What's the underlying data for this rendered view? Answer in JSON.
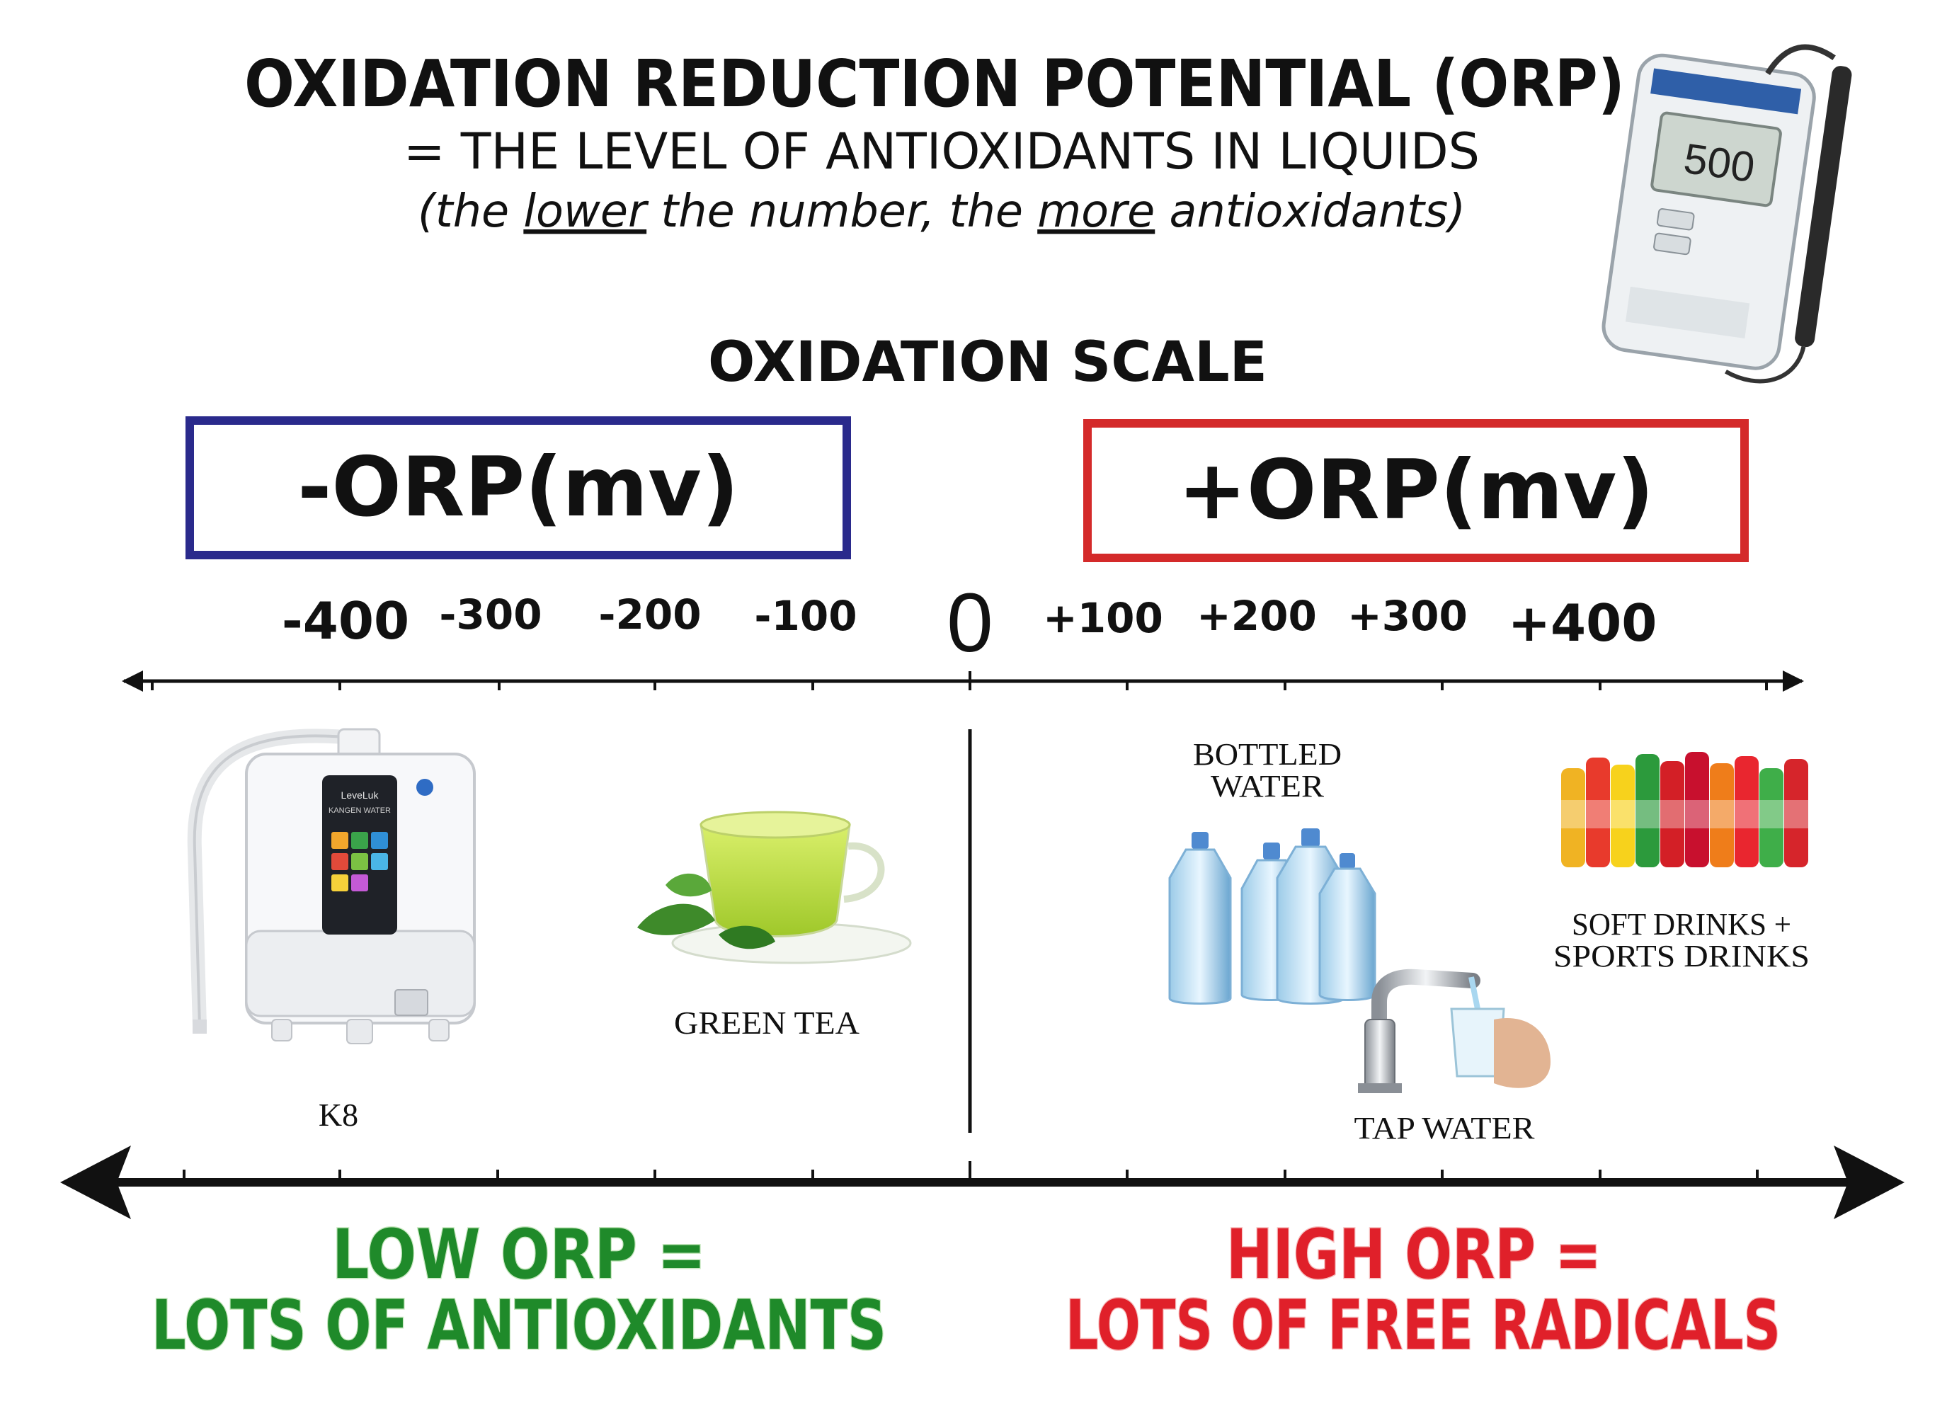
{
  "header": {
    "title": "OXIDATION REDUCTION POTENTIAL (ORP)",
    "subtitle": "= THE LEVEL OF ANTIOXIDANTS IN LIQUIDS",
    "note_open": "(the ",
    "note_lower": "lower",
    "note_mid": " the number, the ",
    "note_more": "more",
    "note_close": " antioxidants)"
  },
  "meter": {
    "display": "500"
  },
  "scale": {
    "title": "OXIDATION SCALE",
    "negative_label": "-ORP(mv)",
    "positive_label": "+ORP(mv)",
    "ticks": [
      "-400",
      "-300",
      "-200",
      "-100",
      "0",
      "+100",
      "+200",
      "+300",
      "+400"
    ]
  },
  "items": {
    "k8": "K8",
    "machine_brand": "LeveLuk",
    "machine_product": "KANGEN WATER",
    "green_tea": "GREEN TEA",
    "bottled_water_line1": "BOTTLED",
    "bottled_water_line2": "WATER",
    "soft_drinks_line1": "SOFT DRINKS +",
    "soft_drinks_line2": "SPORTS DRINKS",
    "tap_water": "TAP WATER"
  },
  "footer": {
    "low_line1": "LOW ORP =",
    "low_line2": "LOTS OF ANTIOXIDANTS",
    "high_line1": "HIGH ORP =",
    "high_line2": "LOTS OF FREE RADICALS"
  },
  "colors": {
    "negative_box": "#2a2a8c",
    "positive_box": "#d42a2a",
    "low_text": "#1f8a2a",
    "high_text": "#e0202a",
    "ink": "#111111"
  }
}
